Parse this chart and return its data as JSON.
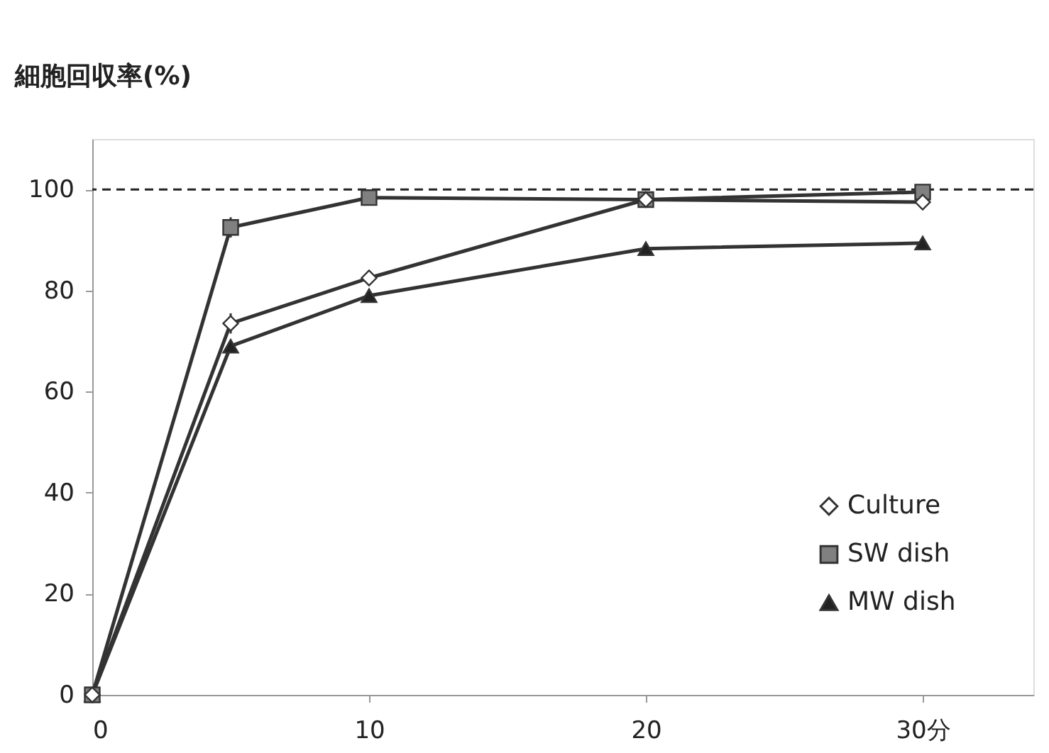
{
  "chart_data": {
    "type": "line",
    "ylabel": "細胞回収率(%)",
    "x": [
      0,
      5,
      10,
      20,
      30
    ],
    "series": [
      {
        "name": "Culture",
        "color": "#ffffff",
        "marker": "diamond",
        "values": [
          0,
          73.5,
          82.5,
          98,
          97.5
        ],
        "errors": [
          null,
          2,
          null,
          null,
          null
        ]
      },
      {
        "name": "SW dish",
        "color": "#808080",
        "marker": "square",
        "values": [
          0,
          92.5,
          98.4,
          98,
          99.5
        ],
        "errors": [
          null,
          2,
          null,
          null,
          null
        ]
      },
      {
        "name": "MW dish",
        "color": "#222222",
        "marker": "triangle",
        "values": [
          0,
          69,
          79,
          88.3,
          89.4
        ]
      }
    ],
    "xlim": [
      0,
      34
    ],
    "xticks": [
      0,
      10,
      20,
      {
        "value": 30,
        "label": "30分"
      }
    ],
    "ylim": [
      0,
      110
    ],
    "yticks": [
      0,
      20,
      40,
      60,
      80,
      100
    ],
    "ref_lines": [
      {
        "axis": "y",
        "value": 100,
        "line_style": "dashed"
      }
    ],
    "grid": false,
    "legend": "bottom right",
    "line_style": "solid"
  }
}
